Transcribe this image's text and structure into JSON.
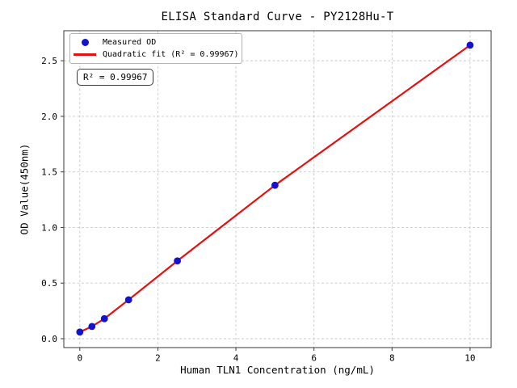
{
  "chart_data": {
    "type": "scatter",
    "title": "ELISA Standard Curve - PY2128Hu-T",
    "xlabel": "Human TLN1 Concentration (ng/mL)",
    "ylabel": "OD Value(450nm)",
    "xlim": [
      -0.41,
      10.54
    ],
    "ylim": [
      -0.08,
      2.77
    ],
    "xticks": {
      "values": [
        0,
        2,
        4,
        6,
        8,
        10
      ],
      "labels": [
        "0",
        "2",
        "4",
        "6",
        "8",
        "10"
      ]
    },
    "yticks": {
      "values": [
        0.0,
        0.5,
        1.0,
        1.5,
        2.0,
        2.5
      ],
      "labels": [
        "0.0",
        "0.5",
        "1.0",
        "1.5",
        "2.0",
        "2.5"
      ]
    },
    "grid": {
      "visible": true,
      "style": "dashed",
      "color": "#c9c9c9"
    },
    "axis_color": "#3a3a3a",
    "background": "#ffffff",
    "series": [
      {
        "name": "Measured OD",
        "kind": "scatter",
        "marker": "circle",
        "color": "#1212d0",
        "x": [
          0,
          0.31,
          0.63,
          1.25,
          2.5,
          5,
          10
        ],
        "y": [
          0.06,
          0.11,
          0.18,
          0.35,
          0.7,
          1.38,
          2.64
        ]
      },
      {
        "name": "Quadratic fit (R² = 0.99967)",
        "kind": "line",
        "color": "#e41111",
        "x": [
          0,
          0.31,
          0.63,
          1.25,
          2.5,
          5,
          10
        ],
        "y": [
          0.06,
          0.11,
          0.18,
          0.35,
          0.7,
          1.38,
          2.64
        ]
      }
    ],
    "legend": {
      "position": "upper-left",
      "entries": [
        "Measured OD",
        "Quadratic fit (R² = 0.99967)"
      ]
    },
    "annotation": {
      "text": "R² = 0.99967"
    },
    "r_squared": 0.99967
  }
}
